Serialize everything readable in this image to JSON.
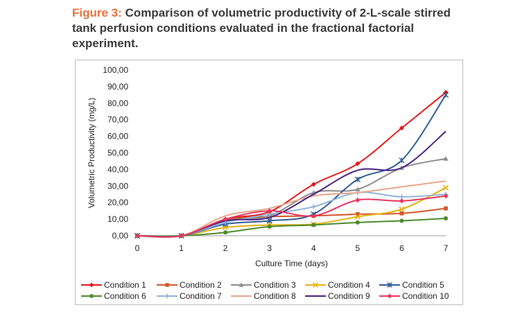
{
  "figure": {
    "label": "Figure 3:",
    "caption": "Comparison of volumetric productivity of 2-L-scale stirred tank perfusion conditions evaluated in the fractional factorial experiment."
  },
  "chart_data": {
    "type": "line",
    "xlabel": "Culture Time (days)",
    "ylabel": "Volumetric Productivity (mg/L)",
    "x": [
      0,
      1,
      2,
      3,
      4,
      5,
      6,
      7
    ],
    "xlim": [
      0,
      7
    ],
    "ylim": [
      0,
      100
    ],
    "x_ticks": [
      "0",
      "1",
      "2",
      "3",
      "4",
      "5",
      "6",
      "7"
    ],
    "y_ticks": [
      "0,00",
      "10,00",
      "20,00",
      "30,00",
      "40,00",
      "50,00",
      "60,00",
      "70,00",
      "80,00",
      "90,00",
      "100,00"
    ],
    "grid": false,
    "legend_position": "bottom",
    "series": [
      {
        "name": "Condition 1",
        "color": "#e41a1c",
        "marker": "diamond",
        "values": [
          0,
          0,
          10,
          14.5,
          31,
          43.5,
          65,
          86.5
        ]
      },
      {
        "name": "Condition 2",
        "color": "#d4572a",
        "marker": "square",
        "values": [
          0,
          0,
          9.5,
          11.5,
          12,
          13,
          13.5,
          16.5
        ]
      },
      {
        "name": "Condition 3",
        "color": "#8c8c8c",
        "marker": "triangle",
        "values": [
          0,
          0,
          9,
          12,
          26,
          28,
          41,
          46.5
        ]
      },
      {
        "name": "Condition 4",
        "color": "#e6b214",
        "marker": "x",
        "values": [
          0,
          0,
          5,
          6.5,
          7,
          11.5,
          16,
          29
        ]
      },
      {
        "name": "Condition 5",
        "color": "#2e5c9a",
        "marker": "star",
        "values": [
          0,
          0,
          7,
          9,
          13,
          34,
          45.5,
          85
        ]
      },
      {
        "name": "Condition 6",
        "color": "#4d8a2c",
        "marker": "circle",
        "values": [
          0,
          0,
          2,
          5.5,
          6.5,
          8,
          9,
          10.5
        ]
      },
      {
        "name": "Condition 7",
        "color": "#8fb3dc",
        "marker": "plus",
        "values": [
          0,
          0,
          8,
          13,
          17.5,
          26,
          23.5,
          25
        ]
      },
      {
        "name": "Condition 8",
        "color": "#e8a78a",
        "marker": "none",
        "values": [
          0,
          0,
          12,
          16.5,
          24,
          26,
          29.5,
          33
        ]
      },
      {
        "name": "Condition 9",
        "color": "#4b2283",
        "marker": "none",
        "values": [
          0,
          0,
          9,
          11,
          25,
          39.5,
          41,
          63
        ]
      },
      {
        "name": "Condition 10",
        "color": "#e8355f",
        "marker": "diamond",
        "values": [
          0,
          0,
          10,
          15,
          12,
          21.5,
          21,
          24
        ]
      }
    ]
  }
}
